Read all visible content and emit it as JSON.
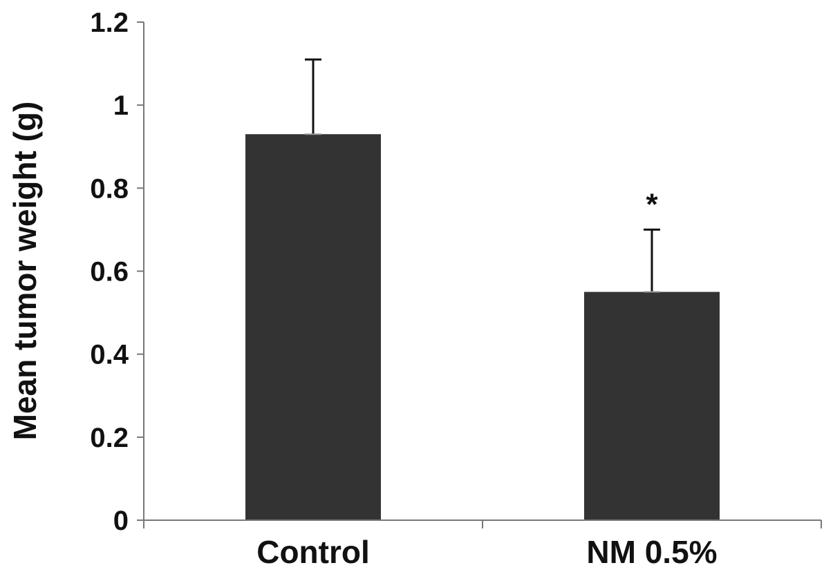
{
  "chart_data": {
    "type": "bar",
    "categories": [
      "Control",
      "NM 0.5%"
    ],
    "values": [
      0.93,
      0.55
    ],
    "error_upper": [
      1.11,
      0.7
    ],
    "significance": [
      "",
      "*"
    ],
    "title": "",
    "xlabel": "",
    "ylabel": "Mean tumor weight (g)",
    "ylim": [
      0,
      1.2
    ],
    "yticks": [
      "0",
      "0.2",
      "0.4",
      "0.6",
      "0.8",
      "1",
      "1.2"
    ],
    "grid": false,
    "legend": "none",
    "bar_color": "#333333",
    "axis_color": "#777777"
  }
}
